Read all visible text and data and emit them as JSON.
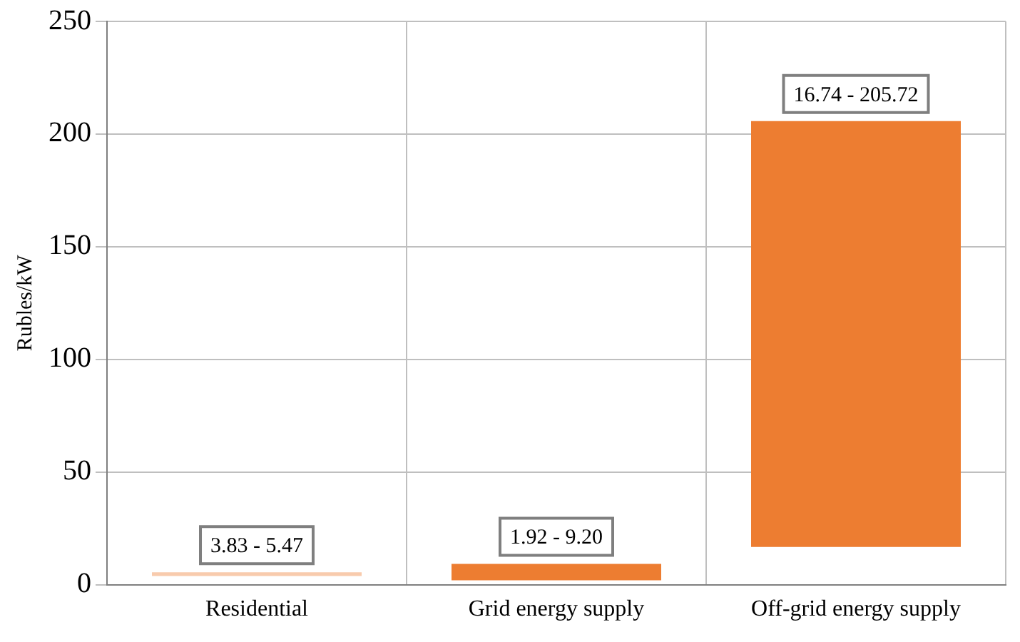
{
  "chart_data": {
    "type": "bar",
    "ylabel": "Rubles/kW",
    "categories": [
      "Residential",
      "Grid energy supply",
      "Off-grid energy supply"
    ],
    "base": [
      3.83,
      1.92,
      16.74
    ],
    "values": [
      1.64,
      7.28,
      188.98
    ],
    "colors": [
      "#f8cbad",
      "#ed7d31",
      "#ed7d31"
    ],
    "annotations": [
      {
        "text": "3.83 - 5.47",
        "x": "Residential",
        "y": 5.47
      },
      {
        "text": "1.92 - 9.20",
        "x": "Grid energy supply",
        "y": 9.2
      },
      {
        "text": "16.74 - 205.72",
        "x": "Off-grid energy supply",
        "y": 205.72
      }
    ],
    "ylim": [
      0,
      250
    ],
    "yticks": [
      0,
      50,
      100,
      150,
      200,
      250
    ],
    "grid": true
  }
}
